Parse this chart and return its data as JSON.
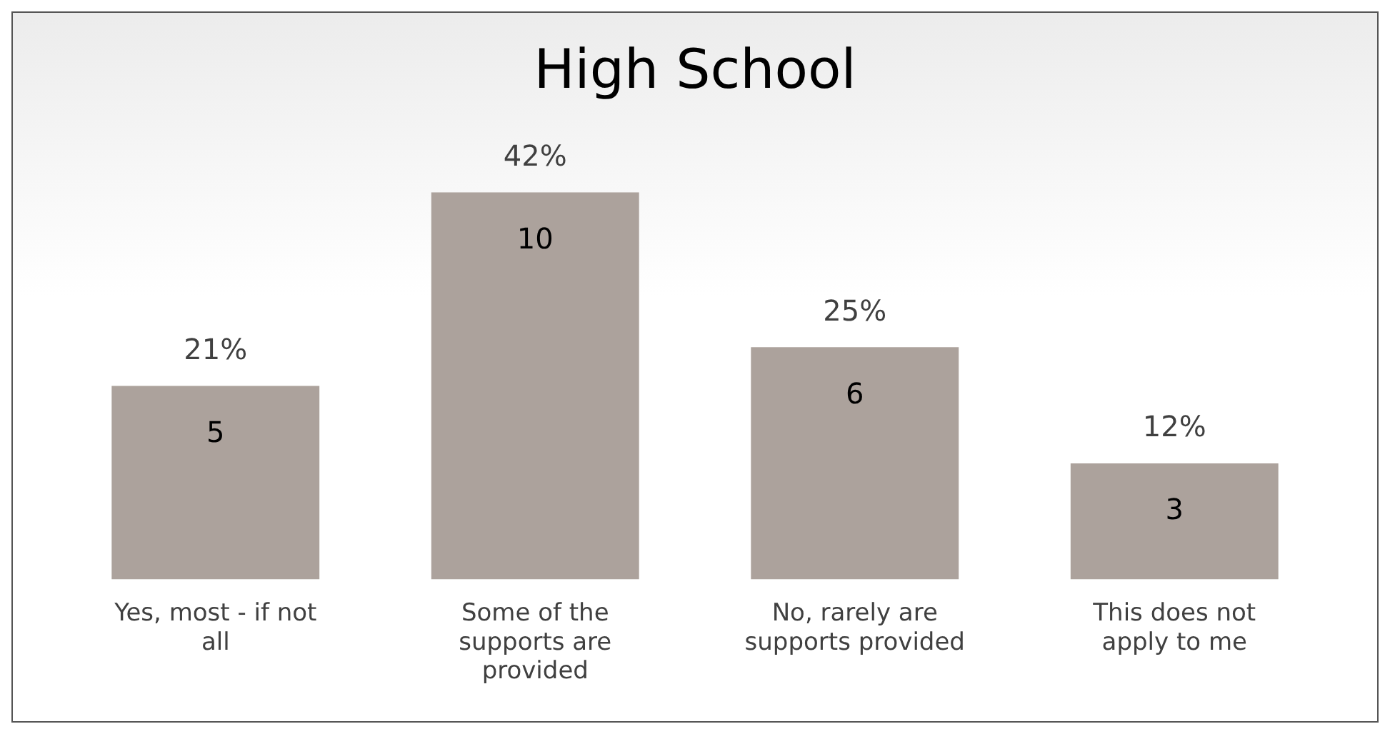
{
  "chart_data": {
    "type": "bar",
    "title": "High School",
    "categories": [
      "Yes, most - if not all",
      "Some of the supports are provided",
      "No, rarely are supports provided",
      "This does not apply to me"
    ],
    "values": [
      5,
      10,
      6,
      3
    ],
    "color": "#aca29c",
    "data_labels": true,
    "grid": false,
    "legend": false,
    "annotations": [
      {
        "text": "21%",
        "x": "Yes, most - if not all",
        "y": 5
      },
      {
        "text": "42%",
        "x": "Some of the supports are provided",
        "y": 10
      },
      {
        "text": "25%",
        "x": "No, rarely are supports provided",
        "y": 6
      },
      {
        "text": "12%",
        "x": "This does not apply to me",
        "y": 3
      }
    ]
  }
}
